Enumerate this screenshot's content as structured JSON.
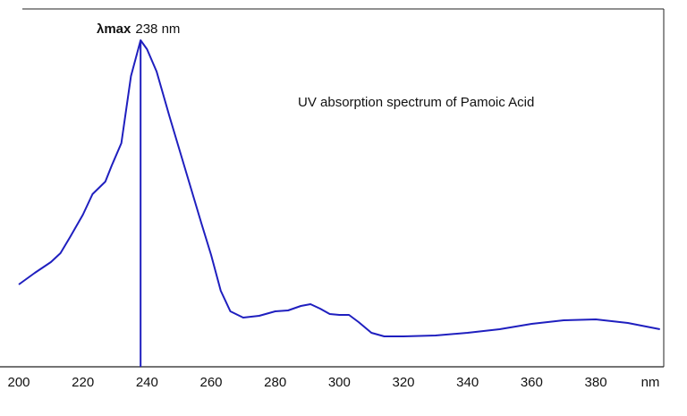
{
  "chart_data": {
    "type": "line",
    "title": "UV absorption spectrum of Pamoic Acid",
    "x_label": "nm",
    "color": "#1f1fbf",
    "x": [
      200,
      205,
      210,
      213,
      216,
      220,
      223,
      227,
      229,
      232,
      235,
      238,
      240,
      243,
      247,
      252,
      257,
      260,
      263,
      266,
      270,
      275,
      280,
      284,
      288,
      291,
      294,
      297,
      300,
      303,
      306,
      310,
      314,
      320,
      330,
      340,
      350,
      360,
      370,
      380,
      390,
      400
    ],
    "values": [
      0.23,
      0.2625,
      0.2925,
      0.3175,
      0.3625,
      0.425,
      0.4825,
      0.5175,
      0.5625,
      0.625,
      0.8125,
      0.9125,
      0.8875,
      0.825,
      0.7,
      0.55,
      0.4,
      0.3125,
      0.2125,
      0.155,
      0.1375,
      0.1425,
      0.155,
      0.1575,
      0.17,
      0.175,
      0.1625,
      0.1475,
      0.145,
      0.145,
      0.125,
      0.095,
      0.085,
      0.085,
      0.0875,
      0.095,
      0.105,
      0.12,
      0.13,
      0.1325,
      0.1225,
      0.105
    ],
    "xlim": [
      200,
      401
    ],
    "ylim": [
      0,
      1
    ],
    "xticks": [
      200,
      220,
      240,
      260,
      280,
      300,
      320,
      340,
      360,
      380
    ],
    "annotation": {
      "x": 238,
      "label": "λmax",
      "value_label": "238 nm"
    }
  }
}
